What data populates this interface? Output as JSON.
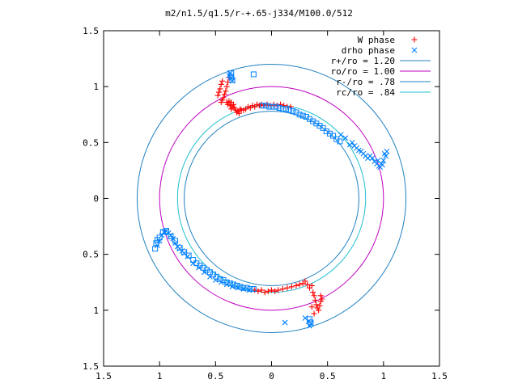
{
  "chart_data": {
    "type": "scatter",
    "title": "m2/n1.5/q1.5/r-+.65-j334/M100.0/512",
    "xlabel": "",
    "ylabel": "",
    "xlim": [
      -1.5,
      1.5
    ],
    "ylim": [
      -1.5,
      1.5
    ],
    "x_ticks": [
      {
        "value": -1.5,
        "label": "1.5"
      },
      {
        "value": -1,
        "label": "1"
      },
      {
        "value": -0.5,
        "label": "0.5"
      },
      {
        "value": 0,
        "label": "0"
      },
      {
        "value": 0.5,
        "label": "0.5"
      },
      {
        "value": 1,
        "label": "1"
      },
      {
        "value": 1.5,
        "label": "1.5"
      }
    ],
    "y_ticks": [
      {
        "value": 1.5,
        "label": "1.5"
      },
      {
        "value": 1,
        "label": "1"
      },
      {
        "value": 0.5,
        "label": "0.5"
      },
      {
        "value": 0,
        "label": "0"
      },
      {
        "value": -0.5,
        "label": "0.5"
      },
      {
        "value": -1,
        "label": "1"
      },
      {
        "value": -1.5,
        "label": "1.5"
      }
    ],
    "legend_position": "top-right",
    "grid": false,
    "series": [
      {
        "name": "W phase",
        "marker": "plus",
        "color": "#ff0000",
        "points": [
          [
            -0.48,
            0.92
          ],
          [
            -0.47,
            0.95
          ],
          [
            -0.46,
            0.98
          ],
          [
            -0.45,
            1.02
          ],
          [
            -0.44,
            1.05
          ],
          [
            -0.43,
            0.9
          ],
          [
            -0.44,
            0.88
          ],
          [
            -0.45,
            0.86
          ],
          [
            -0.42,
            0.93
          ],
          [
            -0.41,
            0.96
          ],
          [
            -0.4,
            0.86
          ],
          [
            -0.39,
            0.84
          ],
          [
            -0.38,
            0.87
          ],
          [
            -0.37,
            0.83
          ],
          [
            -0.36,
            0.86
          ],
          [
            -0.35,
            0.82
          ],
          [
            -0.36,
            0.8
          ],
          [
            -0.34,
            0.84
          ],
          [
            -0.33,
            0.81
          ],
          [
            -0.32,
            0.79
          ],
          [
            -0.31,
            0.77
          ],
          [
            -0.3,
            0.78
          ],
          [
            -0.29,
            0.76
          ],
          [
            -0.28,
            0.8
          ],
          [
            -0.27,
            0.79
          ],
          [
            -0.25,
            0.79
          ],
          [
            -0.23,
            0.8
          ],
          [
            -0.21,
            0.82
          ],
          [
            -0.19,
            0.81
          ],
          [
            -0.17,
            0.83
          ],
          [
            -0.15,
            0.82
          ],
          [
            -0.13,
            0.84
          ],
          [
            -0.11,
            0.83
          ],
          [
            -0.09,
            0.84
          ],
          [
            -0.07,
            0.83
          ],
          [
            -0.04,
            0.84
          ],
          [
            -0.01,
            0.83
          ],
          [
            0.02,
            0.84
          ],
          [
            0.05,
            0.83
          ],
          [
            0.08,
            0.84
          ],
          [
            0.11,
            0.83
          ],
          [
            0.14,
            0.82
          ],
          [
            0.17,
            0.82
          ],
          [
            -0.38,
            1.08
          ],
          [
            -0.39,
            1.04
          ],
          [
            -0.4,
            1.0
          ],
          [
            -0.15,
            -0.82
          ],
          [
            -0.12,
            -0.83
          ],
          [
            -0.09,
            -0.82
          ],
          [
            -0.06,
            -0.84
          ],
          [
            -0.03,
            -0.83
          ],
          [
            0.0,
            -0.82
          ],
          [
            0.03,
            -0.83
          ],
          [
            0.06,
            -0.82
          ],
          [
            0.1,
            -0.81
          ],
          [
            0.14,
            -0.8
          ],
          [
            0.18,
            -0.79
          ],
          [
            0.22,
            -0.78
          ],
          [
            0.25,
            -0.77
          ],
          [
            0.28,
            -0.76
          ],
          [
            0.3,
            -0.74
          ],
          [
            0.32,
            -0.77
          ],
          [
            0.34,
            -0.8
          ],
          [
            0.36,
            -0.78
          ],
          [
            0.37,
            -0.84
          ],
          [
            0.38,
            -0.87
          ],
          [
            0.39,
            -0.91
          ],
          [
            0.4,
            -0.95
          ],
          [
            0.41,
            -0.98
          ],
          [
            0.42,
            -1.0
          ],
          [
            0.43,
            -0.96
          ],
          [
            0.44,
            -0.92
          ],
          [
            0.45,
            -0.9
          ],
          [
            0.44,
            -0.87
          ],
          [
            0.36,
            -0.97
          ],
          [
            0.38,
            -1.03
          ]
        ]
      },
      {
        "name": "drho phase",
        "marker": "x",
        "color": "#0080ff",
        "points": [
          [
            -0.38,
            1.1
          ],
          [
            -0.37,
            1.12
          ],
          [
            -0.36,
            1.08
          ],
          [
            -0.35,
            1.05
          ],
          [
            0.7,
            0.48
          ],
          [
            0.72,
            0.5
          ],
          [
            0.74,
            0.47
          ],
          [
            0.76,
            0.45
          ],
          [
            0.78,
            0.43
          ],
          [
            0.8,
            0.42
          ],
          [
            0.82,
            0.4
          ],
          [
            0.84,
            0.38
          ],
          [
            0.86,
            0.36
          ],
          [
            0.88,
            0.38
          ],
          [
            0.9,
            0.36
          ],
          [
            0.92,
            0.33
          ],
          [
            0.94,
            0.31
          ],
          [
            0.96,
            0.29
          ],
          [
            0.98,
            0.31
          ],
          [
            1.0,
            0.34
          ],
          [
            1.02,
            0.38
          ],
          [
            1.03,
            0.42
          ],
          [
            1.01,
            0.4
          ],
          [
            0.99,
            0.3
          ],
          [
            0.97,
            0.28
          ],
          [
            0.95,
            0.34
          ],
          [
            0.66,
            0.54
          ],
          [
            0.62,
            0.57
          ],
          [
            -1.02,
            -0.42
          ],
          [
            -1.0,
            -0.38
          ],
          [
            -0.98,
            -0.33
          ],
          [
            -0.96,
            -0.3
          ],
          [
            -0.94,
            -0.29
          ],
          [
            -0.92,
            -0.31
          ],
          [
            -0.9,
            -0.33
          ],
          [
            -0.88,
            -0.36
          ],
          [
            -0.86,
            -0.4
          ],
          [
            -0.84,
            -0.43
          ],
          [
            -0.82,
            -0.45
          ],
          [
            -0.8,
            -0.47
          ],
          [
            -0.78,
            -0.49
          ],
          [
            -0.75,
            -0.52
          ],
          [
            -0.7,
            -0.58
          ],
          [
            -0.65,
            -0.62
          ],
          [
            -0.6,
            -0.66
          ],
          [
            -0.55,
            -0.7
          ],
          [
            -0.5,
            -0.73
          ],
          [
            -0.45,
            -0.75
          ],
          [
            -0.4,
            -0.77
          ],
          [
            -0.35,
            -0.79
          ],
          [
            -0.3,
            -0.8
          ],
          [
            -0.25,
            -0.81
          ],
          [
            -0.2,
            -0.82
          ],
          [
            0.12,
            -1.11
          ],
          [
            0.3,
            -1.07
          ],
          [
            0.33,
            -1.1
          ],
          [
            0.35,
            -1.12
          ],
          [
            0.34,
            -1.14
          ]
        ]
      },
      {
        "name": "",
        "marker": "square",
        "color": "#0080ff",
        "points": [
          [
            -0.36,
            1.12
          ],
          [
            -0.36,
            1.09
          ],
          [
            -0.35,
            1.06
          ],
          [
            -0.16,
            1.11
          ],
          [
            -0.08,
            0.83
          ],
          [
            -0.05,
            0.83
          ],
          [
            -0.02,
            0.82
          ],
          [
            0.01,
            0.82
          ],
          [
            0.04,
            0.82
          ],
          [
            0.07,
            0.81
          ],
          [
            0.1,
            0.8
          ],
          [
            0.13,
            0.8
          ],
          [
            0.16,
            0.79
          ],
          [
            0.19,
            0.78
          ],
          [
            0.22,
            0.77
          ],
          [
            0.25,
            0.75
          ],
          [
            0.28,
            0.74
          ],
          [
            0.31,
            0.73
          ],
          [
            0.34,
            0.71
          ],
          [
            0.37,
            0.69
          ],
          [
            0.4,
            0.67
          ],
          [
            0.43,
            0.65
          ],
          [
            0.46,
            0.63
          ],
          [
            0.49,
            0.6
          ],
          [
            0.52,
            0.58
          ],
          [
            0.55,
            0.56
          ],
          [
            0.58,
            0.53
          ],
          [
            0.61,
            0.51
          ],
          [
            -1.04,
            -0.45
          ],
          [
            -1.03,
            -0.4
          ],
          [
            -1.02,
            -0.37
          ],
          [
            -1.0,
            -0.35
          ],
          [
            -0.97,
            -0.3
          ],
          [
            -0.94,
            -0.29
          ],
          [
            -0.9,
            -0.34
          ],
          [
            -0.86,
            -0.38
          ],
          [
            -0.82,
            -0.44
          ],
          [
            -0.78,
            -0.48
          ],
          [
            -0.74,
            -0.51
          ],
          [
            -0.7,
            -0.55
          ],
          [
            -0.67,
            -0.58
          ],
          [
            -0.64,
            -0.6
          ],
          [
            -0.61,
            -0.62
          ],
          [
            -0.58,
            -0.64
          ],
          [
            -0.55,
            -0.66
          ],
          [
            -0.52,
            -0.68
          ],
          [
            -0.49,
            -0.7
          ],
          [
            -0.46,
            -0.72
          ],
          [
            -0.43,
            -0.73
          ],
          [
            -0.4,
            -0.75
          ],
          [
            -0.37,
            -0.76
          ],
          [
            -0.34,
            -0.77
          ],
          [
            -0.31,
            -0.78
          ],
          [
            -0.28,
            -0.79
          ],
          [
            -0.25,
            -0.8
          ],
          [
            -0.22,
            -0.8
          ],
          [
            -0.19,
            -0.81
          ],
          [
            -0.16,
            -0.81
          ],
          [
            0.34,
            -1.08
          ],
          [
            0.35,
            -1.11
          ]
        ]
      },
      {
        "name": "r+/ro = 1.20",
        "kind": "circle",
        "radius": 1.2,
        "color": "#2080c0"
      },
      {
        "name": "ro/ro = 1.00",
        "kind": "circle",
        "radius": 1.0,
        "color": "#c000c0"
      },
      {
        "name": "r-/ro = .78",
        "kind": "circle",
        "radius": 0.78,
        "color": "#2080c0"
      },
      {
        "name": "rc/ro = .84",
        "kind": "circle",
        "radius": 0.84,
        "color": "#20c0d0"
      }
    ]
  }
}
